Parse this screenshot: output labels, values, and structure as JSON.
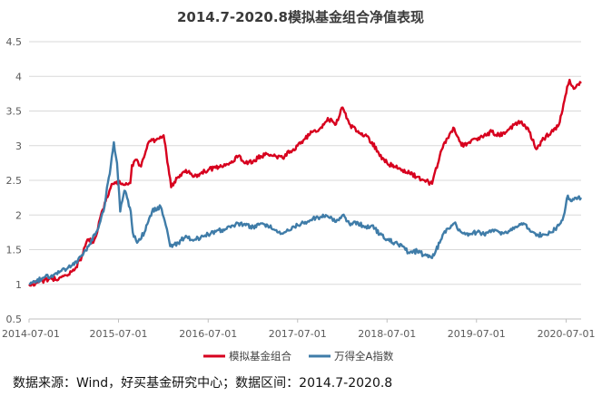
{
  "chart_data": {
    "type": "line",
    "title": "2014.7-2020.8模拟基金组合净值表现",
    "xlabel": "",
    "ylabel": "",
    "xlim": [
      "2014-07-01",
      "2020-08-31"
    ],
    "ylim": [
      0.5,
      4.5
    ],
    "yticks": [
      "0.5",
      "1",
      "1.5",
      "2",
      "2.5",
      "3",
      "3.5",
      "4",
      "4.5"
    ],
    "xticks": [
      "2014-07-01",
      "2015-07-01",
      "2016-07-01",
      "2017-07-01",
      "2018-07-01",
      "2019-07-01",
      "2020-07-01"
    ],
    "grid": "horizontal",
    "legend_position": "bottom",
    "series": [
      {
        "name": "模拟基金组合",
        "color": "#d7001e",
        "points": [
          [
            "2014-07-01",
            1.0
          ],
          [
            "2014-08-01",
            1.02
          ],
          [
            "2014-09-01",
            1.06
          ],
          [
            "2014-10-01",
            1.08
          ],
          [
            "2014-11-01",
            1.09
          ],
          [
            "2014-12-01",
            1.13
          ],
          [
            "2015-01-01",
            1.2
          ],
          [
            "2015-02-01",
            1.4
          ],
          [
            "2015-02-15",
            1.55
          ],
          [
            "2015-03-01",
            1.65
          ],
          [
            "2015-03-20",
            1.6
          ],
          [
            "2015-04-01",
            1.7
          ],
          [
            "2015-04-20",
            2.0
          ],
          [
            "2015-05-10",
            2.2
          ],
          [
            "2015-05-25",
            2.35
          ],
          [
            "2015-06-08",
            2.45
          ],
          [
            "2015-06-20",
            2.46
          ],
          [
            "2015-07-01",
            2.46
          ],
          [
            "2015-08-01",
            2.46
          ],
          [
            "2015-08-18",
            2.46
          ],
          [
            "2015-08-25",
            2.72
          ],
          [
            "2015-09-10",
            2.8
          ],
          [
            "2015-10-01",
            2.7
          ],
          [
            "2015-11-01",
            3.05
          ],
          [
            "2015-12-10",
            3.1
          ],
          [
            "2016-01-01",
            3.15
          ],
          [
            "2016-01-20",
            2.7
          ],
          [
            "2016-02-01",
            2.4
          ],
          [
            "2016-03-01",
            2.55
          ],
          [
            "2016-04-01",
            2.65
          ],
          [
            "2016-05-01",
            2.55
          ],
          [
            "2016-06-01",
            2.6
          ],
          [
            "2016-07-01",
            2.65
          ],
          [
            "2016-08-01",
            2.68
          ],
          [
            "2016-09-01",
            2.7
          ],
          [
            "2016-10-01",
            2.75
          ],
          [
            "2016-11-01",
            2.85
          ],
          [
            "2016-12-01",
            2.75
          ],
          [
            "2017-01-01",
            2.78
          ],
          [
            "2017-02-01",
            2.85
          ],
          [
            "2017-03-01",
            2.88
          ],
          [
            "2017-04-01",
            2.85
          ],
          [
            "2017-05-01",
            2.82
          ],
          [
            "2017-06-01",
            2.92
          ],
          [
            "2017-07-01",
            3.0
          ],
          [
            "2017-08-01",
            3.1
          ],
          [
            "2017-09-01",
            3.2
          ],
          [
            "2017-10-01",
            3.25
          ],
          [
            "2017-11-01",
            3.4
          ],
          [
            "2017-12-01",
            3.3
          ],
          [
            "2018-01-01",
            3.55
          ],
          [
            "2018-02-01",
            3.3
          ],
          [
            "2018-03-01",
            3.2
          ],
          [
            "2018-04-01",
            3.15
          ],
          [
            "2018-05-01",
            3.05
          ],
          [
            "2018-06-01",
            2.85
          ],
          [
            "2018-07-01",
            2.75
          ],
          [
            "2018-08-01",
            2.7
          ],
          [
            "2018-09-01",
            2.65
          ],
          [
            "2018-10-01",
            2.6
          ],
          [
            "2018-11-01",
            2.55
          ],
          [
            "2018-12-01",
            2.5
          ],
          [
            "2019-01-01",
            2.45
          ],
          [
            "2019-02-01",
            2.85
          ],
          [
            "2019-03-01",
            3.1
          ],
          [
            "2019-04-01",
            3.25
          ],
          [
            "2019-05-01",
            3.0
          ],
          [
            "2019-06-01",
            3.05
          ],
          [
            "2019-07-01",
            3.1
          ],
          [
            "2019-08-01",
            3.15
          ],
          [
            "2019-09-01",
            3.2
          ],
          [
            "2019-10-01",
            3.15
          ],
          [
            "2019-11-01",
            3.2
          ],
          [
            "2019-12-01",
            3.3
          ],
          [
            "2020-01-01",
            3.35
          ],
          [
            "2020-02-01",
            3.2
          ],
          [
            "2020-03-01",
            2.95
          ],
          [
            "2020-04-01",
            3.1
          ],
          [
            "2020-05-01",
            3.2
          ],
          [
            "2020-06-01",
            3.3
          ],
          [
            "2020-06-20",
            3.6
          ],
          [
            "2020-07-05",
            3.85
          ],
          [
            "2020-07-15",
            3.95
          ],
          [
            "2020-08-01",
            3.82
          ],
          [
            "2020-08-31",
            3.9
          ]
        ]
      },
      {
        "name": "万得全A指数",
        "color": "#3f7ca8",
        "points": [
          [
            "2014-07-01",
            1.0
          ],
          [
            "2014-08-01",
            1.05
          ],
          [
            "2014-09-01",
            1.1
          ],
          [
            "2014-10-01",
            1.13
          ],
          [
            "2014-11-01",
            1.17
          ],
          [
            "2014-12-01",
            1.22
          ],
          [
            "2015-01-01",
            1.28
          ],
          [
            "2015-02-01",
            1.42
          ],
          [
            "2015-03-01",
            1.55
          ],
          [
            "2015-04-01",
            1.75
          ],
          [
            "2015-05-01",
            2.05
          ],
          [
            "2015-05-15",
            2.4
          ],
          [
            "2015-05-30",
            2.7
          ],
          [
            "2015-06-12",
            3.05
          ],
          [
            "2015-06-25",
            2.75
          ],
          [
            "2015-07-08",
            2.05
          ],
          [
            "2015-07-25",
            2.35
          ],
          [
            "2015-08-05",
            2.25
          ],
          [
            "2015-08-20",
            2.05
          ],
          [
            "2015-08-28",
            1.75
          ],
          [
            "2015-09-15",
            1.6
          ],
          [
            "2015-10-15",
            1.75
          ],
          [
            "2015-11-15",
            2.05
          ],
          [
            "2015-12-20",
            2.12
          ],
          [
            "2016-01-10",
            1.85
          ],
          [
            "2016-01-28",
            1.55
          ],
          [
            "2016-03-01",
            1.6
          ],
          [
            "2016-04-01",
            1.7
          ],
          [
            "2016-05-01",
            1.63
          ],
          [
            "2016-06-01",
            1.68
          ],
          [
            "2016-07-01",
            1.72
          ],
          [
            "2016-08-01",
            1.76
          ],
          [
            "2016-09-01",
            1.79
          ],
          [
            "2016-10-01",
            1.82
          ],
          [
            "2016-11-01",
            1.88
          ],
          [
            "2016-12-01",
            1.85
          ],
          [
            "2017-01-01",
            1.83
          ],
          [
            "2017-02-01",
            1.88
          ],
          [
            "2017-03-01",
            1.85
          ],
          [
            "2017-04-01",
            1.78
          ],
          [
            "2017-05-01",
            1.73
          ],
          [
            "2017-06-01",
            1.78
          ],
          [
            "2017-07-01",
            1.85
          ],
          [
            "2017-08-01",
            1.9
          ],
          [
            "2017-09-01",
            1.95
          ],
          [
            "2017-10-01",
            1.97
          ],
          [
            "2017-11-01",
            1.98
          ],
          [
            "2017-12-01",
            1.9
          ],
          [
            "2018-01-01",
            2.0
          ],
          [
            "2018-02-01",
            1.85
          ],
          [
            "2018-03-01",
            1.9
          ],
          [
            "2018-04-01",
            1.82
          ],
          [
            "2018-05-01",
            1.85
          ],
          [
            "2018-06-01",
            1.72
          ],
          [
            "2018-07-01",
            1.65
          ],
          [
            "2018-08-01",
            1.6
          ],
          [
            "2018-09-01",
            1.55
          ],
          [
            "2018-10-01",
            1.45
          ],
          [
            "2018-11-01",
            1.48
          ],
          [
            "2018-12-01",
            1.42
          ],
          [
            "2019-01-01",
            1.38
          ],
          [
            "2019-02-01",
            1.6
          ],
          [
            "2019-03-01",
            1.8
          ],
          [
            "2019-04-01",
            1.88
          ],
          [
            "2019-05-01",
            1.75
          ],
          [
            "2019-06-01",
            1.73
          ],
          [
            "2019-07-01",
            1.75
          ],
          [
            "2019-08-01",
            1.72
          ],
          [
            "2019-09-01",
            1.78
          ],
          [
            "2019-10-01",
            1.75
          ],
          [
            "2019-11-01",
            1.74
          ],
          [
            "2019-12-01",
            1.8
          ],
          [
            "2020-01-01",
            1.88
          ],
          [
            "2020-02-01",
            1.8
          ],
          [
            "2020-03-01",
            1.7
          ],
          [
            "2020-04-01",
            1.72
          ],
          [
            "2020-05-01",
            1.75
          ],
          [
            "2020-06-01",
            1.85
          ],
          [
            "2020-06-20",
            1.98
          ],
          [
            "2020-07-08",
            2.28
          ],
          [
            "2020-07-20",
            2.2
          ],
          [
            "2020-08-01",
            2.22
          ],
          [
            "2020-08-31",
            2.25
          ]
        ]
      }
    ]
  },
  "source_note": "数据来源：Wind，好买基金研究中心；数据区间：2014.7-2020.8"
}
